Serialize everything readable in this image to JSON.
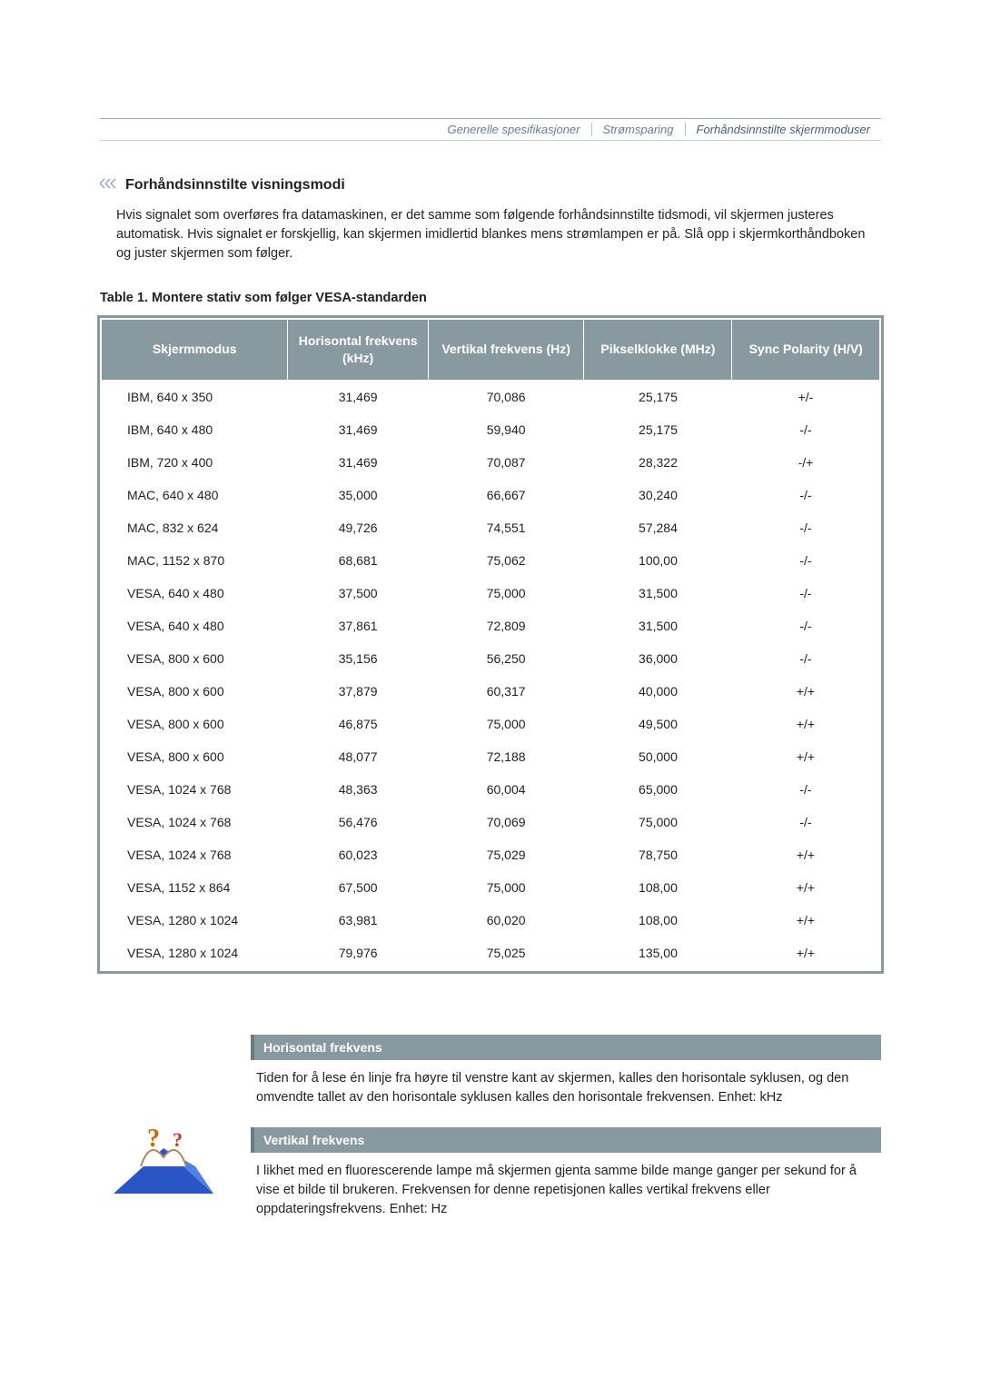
{
  "tabs": {
    "items": [
      {
        "label": "Generelle spesifikasjoner"
      },
      {
        "label": "Strømsparing"
      },
      {
        "label": "Forhåndsinnstilte skjermmoduser"
      }
    ]
  },
  "heading": "Forhåndsinnstilte visningsmodi",
  "intro": "Hvis signalet som overføres fra datamaskinen, er det samme som følgende forhåndsinnstilte tidsmodi, vil skjermen justeres automatisk. Hvis signalet er forskjellig, kan skjermen imidlertid blankes mens strømlampen er på. Slå opp i skjermkorthåndboken og juster skjermen som følger.",
  "table": {
    "caption": "Table 1. Montere stativ som følger VESA-standarden",
    "columns": [
      "Skjermmodus",
      "Horisontal frekvens (kHz)",
      "Vertikal frekvens (Hz)",
      "Pikselklokke (MHz)",
      "Sync Polarity (H/V)"
    ],
    "col_widths": [
      "24%",
      "18%",
      "20%",
      "19%",
      "19%"
    ],
    "header_bg": "#8899a0",
    "header_fg": "#ffffff",
    "outline_color": "#8899a0",
    "body_fontsize": 14,
    "header_fontsize": 14,
    "rows": [
      [
        "IBM, 640 x 350",
        "31,469",
        "70,086",
        "25,175",
        "+/-"
      ],
      [
        "IBM, 640 x 480",
        "31,469",
        "59,940",
        "25,175",
        "-/-"
      ],
      [
        "IBM, 720 x 400",
        "31,469",
        "70,087",
        "28,322",
        "-/+"
      ],
      [
        "MAC, 640 x 480",
        "35,000",
        "66,667",
        "30,240",
        "-/-"
      ],
      [
        "MAC, 832 x 624",
        "49,726",
        "74,551",
        "57,284",
        "-/-"
      ],
      [
        "MAC, 1152 x 870",
        "68,681",
        "75,062",
        "100,00",
        "-/-"
      ],
      [
        "VESA, 640 x 480",
        "37,500",
        "75,000",
        "31,500",
        "-/-"
      ],
      [
        "VESA, 640 x 480",
        "37,861",
        "72,809",
        "31,500",
        "-/-"
      ],
      [
        "VESA, 800 x 600",
        "35,156",
        "56,250",
        "36,000",
        "-/-"
      ],
      [
        "VESA, 800 x 600",
        "37,879",
        "60,317",
        "40,000",
        "+/+"
      ],
      [
        "VESA, 800 x 600",
        "46,875",
        "75,000",
        "49,500",
        "+/+"
      ],
      [
        "VESA, 800 x 600",
        "48,077",
        "72,188",
        "50,000",
        "+/+"
      ],
      [
        "VESA, 1024 x 768",
        "48,363",
        "60,004",
        "65,000",
        "-/-"
      ],
      [
        "VESA, 1024 x 768",
        "56,476",
        "70,069",
        "75,000",
        "-/-"
      ],
      [
        "VESA, 1024 x 768",
        "60,023",
        "75,029",
        "78,750",
        "+/+"
      ],
      [
        "VESA, 1152 x 864",
        "67,500",
        "75,000",
        "108,00",
        "+/+"
      ],
      [
        "VESA, 1280 x 1024",
        "63,981",
        "60,020",
        "108,00",
        "+/+"
      ],
      [
        "VESA, 1280 x 1024",
        "79,976",
        "75,025",
        "135,00",
        "+/+"
      ]
    ]
  },
  "info": {
    "hfreq_title": "Horisontal frekvens",
    "hfreq_text": "Tiden for å lese én linje fra høyre til venstre kant av skjermen, kalles den horisontale syklusen, og den omvendte tallet av den horisontale syklusen kalles den horisontale frekvensen. Enhet: kHz",
    "vfreq_title": "Vertikal frekvens",
    "vfreq_text": "I likhet med en fluorescerende lampe må skjermen gjenta samme bilde mange ganger per sekund for å vise et bilde til brukeren. Frekvensen for denne repetisjonen kalles vertikal frekvens eller oppdateringsfrekvens. Enhet: Hz",
    "header_bg": "#8899a0",
    "header_fg": "#ffffff",
    "header_border_left": "#6a7a82"
  },
  "colors": {
    "body_bg": "#ffffff",
    "text": "#222222",
    "tab_text": "#6a7a99",
    "tab_border": "#9aa8b8"
  }
}
